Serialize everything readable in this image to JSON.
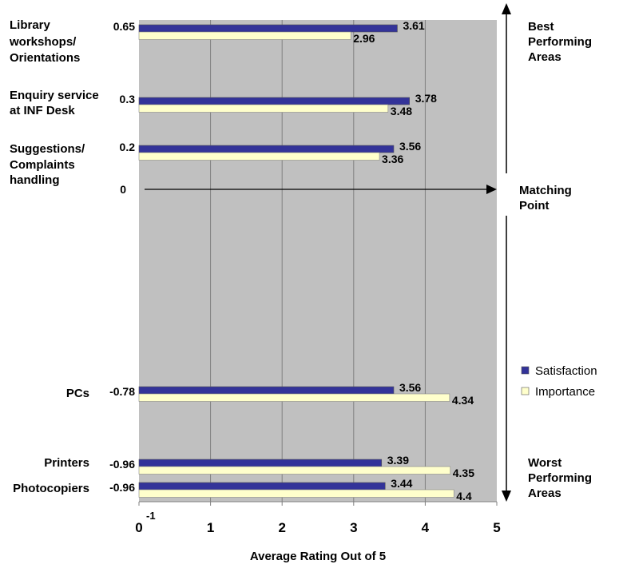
{
  "chart_data": {
    "type": "bar",
    "orientation": "horizontal",
    "title": "",
    "xlabel": "Average Rating Out of 5",
    "ylabel": "",
    "xlim": [
      0,
      5
    ],
    "x_ticks": [
      "0",
      "1",
      "2",
      "3",
      "4",
      "5"
    ],
    "x_tick_extra": "-1",
    "grid": true,
    "legend_position": "right",
    "categories": [
      "Library workshops/ Orientations",
      "Enquiry service at INF Desk",
      "Suggestions/ Complaints handling",
      "PCs",
      "Printers",
      "Photocopiers"
    ],
    "category_lines": [
      [
        "Library",
        "workshops/",
        "Orientations"
      ],
      [
        "Enquiry service",
        "at INF Desk"
      ],
      [
        "Suggestions/",
        "Complaints",
        "handling"
      ],
      [
        "PCs"
      ],
      [
        "Printers"
      ],
      [
        "Photocopiers"
      ]
    ],
    "gap_values": [
      "0.65",
      "0.3",
      "0.2",
      "-0.78",
      "-0.96",
      "-0.96"
    ],
    "zero_label": "0",
    "series": [
      {
        "name": "Satisfaction",
        "color": "#333399",
        "values": [
          3.61,
          3.78,
          3.56,
          3.56,
          3.39,
          3.44
        ]
      },
      {
        "name": "Importance",
        "color": "#FFFFCC",
        "values": [
          2.96,
          3.48,
          3.36,
          4.34,
          4.35,
          4.4
        ]
      }
    ],
    "annotations": {
      "best": [
        "Best",
        "Performing",
        "Areas"
      ],
      "matching": [
        "Matching",
        "Point"
      ],
      "worst": [
        "Worst",
        "Performing",
        "Areas"
      ]
    }
  }
}
